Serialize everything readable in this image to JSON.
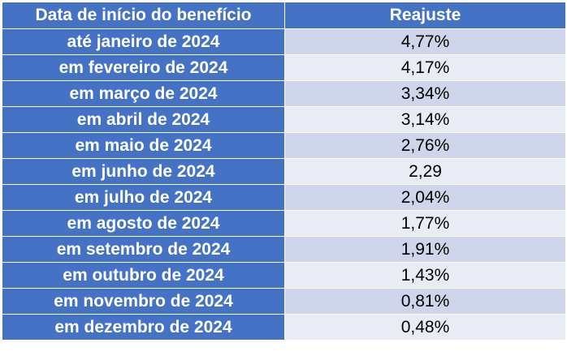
{
  "table": {
    "headers": [
      "Data de início do benefício",
      "Reajuste"
    ],
    "rows": [
      {
        "date": "até janeiro de 2024",
        "value": "4,77%"
      },
      {
        "date": "em fevereiro de 2024",
        "value": "4,17%"
      },
      {
        "date": "em março de 2024",
        "value": "3,34%"
      },
      {
        "date": "em abril de 2024",
        "value": "3,14%"
      },
      {
        "date": "em maio de 2024",
        "value": "2,76%"
      },
      {
        "date": "em junho de 2024",
        "value": "2,29"
      },
      {
        "date": "em julho de 2024",
        "value": "2,04%"
      },
      {
        "date": "em agosto de 2024",
        "value": "1,77%"
      },
      {
        "date": "em setembro de 2024",
        "value": "1,91%"
      },
      {
        "date": "em outubro de 2024",
        "value": "1,43%"
      },
      {
        "date": "em novembro de 2024",
        "value": "0,81%"
      },
      {
        "date": "em dezembro de 2024",
        "value": "0,48%"
      }
    ]
  },
  "colors": {
    "header_bg": "#4472c4",
    "row_dark": "#cfd5ea",
    "row_light": "#e9ebf5"
  }
}
